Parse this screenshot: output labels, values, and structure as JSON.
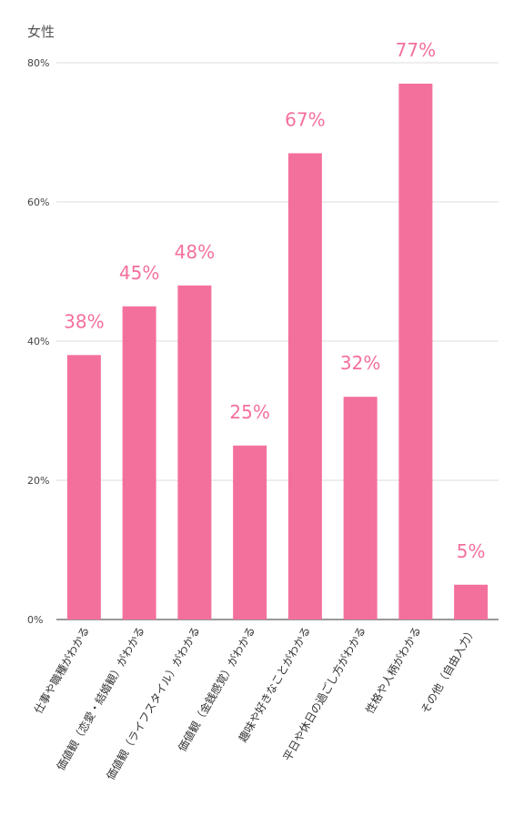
{
  "chart_data": {
    "type": "bar",
    "title": "女性",
    "categories": [
      "仕事や職種がわかる",
      "価値観（恋愛・結婚観）がわかる",
      "価値観（ライフスタイル）がわかる",
      "価値観（金銭感覚）がわかる",
      "趣味や好きなことがわかる",
      "平日や休日の過ごし方がわかる",
      "性格や人柄がわかる",
      "その他（自由入力）"
    ],
    "values": [
      38,
      45,
      48,
      25,
      67,
      32,
      77,
      5
    ],
    "data_labels": [
      "38%",
      "45%",
      "48%",
      "25%",
      "67%",
      "32%",
      "77%",
      "5%"
    ],
    "yticks": [
      "0%",
      "20%",
      "40%",
      "60%",
      "80%"
    ],
    "ytick_values": [
      0,
      20,
      40,
      60,
      80
    ],
    "ylim": [
      0,
      80
    ],
    "grid": true,
    "colors": {
      "bar": "#f4709c",
      "label": "#f4709c"
    }
  }
}
